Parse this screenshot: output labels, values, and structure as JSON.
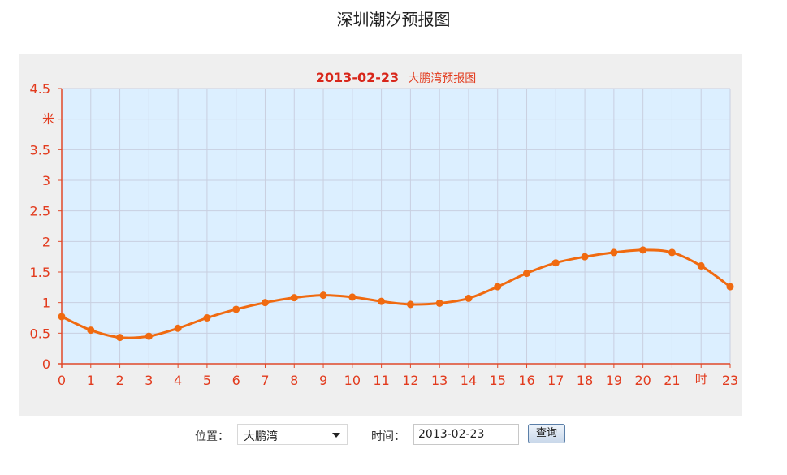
{
  "page": {
    "title": "深圳潮汐预报图"
  },
  "controls": {
    "location_label": "位置：",
    "location_value": "大鹏湾",
    "time_label": "时间：",
    "date_value": "2013-02-23",
    "query_label": "查询"
  },
  "colors": {
    "plot_background": "#dcefff",
    "series_line": "#f06a10",
    "axis": "#e0482a",
    "label_text": "#e23b1e",
    "title_date": "#d8261a",
    "grid": "#c9cfe0"
  },
  "chart_data": {
    "type": "line",
    "title_date": "2013-02-23",
    "title_place": "大鹏湾预报图",
    "ylabel": "米",
    "xlabel": "时",
    "ylim": [
      0,
      4.5
    ],
    "xlim": [
      0,
      23
    ],
    "grid": true,
    "y_ticks": [
      "0",
      "0.5",
      "1",
      "1.5",
      "2",
      "2.5",
      "3",
      "3.5",
      "4.5"
    ],
    "x_ticks": [
      "0",
      "1",
      "2",
      "3",
      "4",
      "5",
      "6",
      "7",
      "8",
      "9",
      "10",
      "11",
      "12",
      "13",
      "14",
      "15",
      "16",
      "17",
      "18",
      "19",
      "20",
      "21",
      "23"
    ],
    "series": [
      {
        "x": [
          0,
          1,
          2,
          3,
          4,
          5,
          6,
          7,
          8,
          9,
          10,
          11,
          12,
          13,
          14,
          15,
          16,
          17,
          18,
          19,
          20,
          21,
          22,
          23
        ],
        "values": [
          0.77,
          0.55,
          0.43,
          0.45,
          0.58,
          0.75,
          0.89,
          1.0,
          1.08,
          1.12,
          1.09,
          1.02,
          0.97,
          0.99,
          1.07,
          1.26,
          1.48,
          1.65,
          1.75,
          1.82,
          1.86,
          1.82,
          1.6,
          1.26
        ]
      }
    ]
  }
}
